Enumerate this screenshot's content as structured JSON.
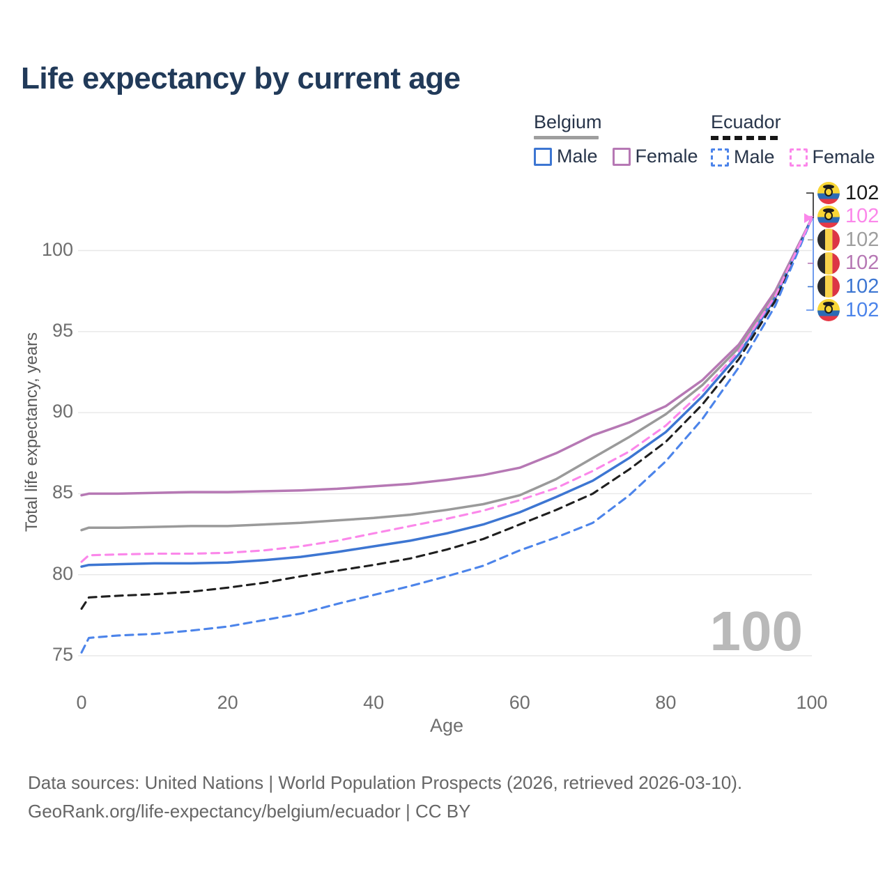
{
  "title": "Life expectancy by current age",
  "legend": {
    "belgium": {
      "label": "Belgium",
      "male_label": "Male",
      "female_label": "Female"
    },
    "ecuador": {
      "label": "Ecuador",
      "male_label": "Male",
      "female_label": "Female"
    }
  },
  "colors": {
    "title": "#213a59",
    "belgium_line": "#9e9e9e",
    "belgium_male": "#3d76d2",
    "belgium_female": "#b678b4",
    "ecuador_line": "#1f1f1f",
    "ecuador_male": "#4c84ea",
    "ecuador_female": "#fb87ea",
    "axis_text": "#6e6e6e",
    "grid": "#e7e7e7",
    "watermark": "#b9b9b9"
  },
  "chart_data": {
    "type": "line",
    "title": "Life expectancy by current age",
    "xlabel": "Age",
    "ylabel": "Total life expectancy, years",
    "x_ticks": [
      0,
      20,
      40,
      60,
      80,
      100
    ],
    "y_ticks": [
      75,
      80,
      85,
      90,
      95,
      100
    ],
    "xlim": [
      0,
      100
    ],
    "ylim": [
      75,
      102.5
    ],
    "grid": true,
    "legend_position": "top-right",
    "x": [
      0,
      1,
      5,
      10,
      15,
      20,
      25,
      30,
      35,
      40,
      45,
      50,
      55,
      60,
      65,
      70,
      75,
      80,
      85,
      90,
      95,
      100
    ],
    "series": [
      {
        "name": "Belgium Female",
        "country": "Belgium",
        "sex": "Female",
        "color": "#b678b4",
        "dashed": false,
        "values": [
          84.9,
          85.0,
          85.0,
          85.05,
          85.1,
          85.1,
          85.15,
          85.2,
          85.3,
          85.45,
          85.6,
          85.85,
          86.15,
          86.6,
          87.5,
          88.6,
          89.4,
          90.4,
          92.0,
          94.2,
          97.5,
          102
        ]
      },
      {
        "name": "Belgium Total",
        "country": "Belgium",
        "sex": "Total",
        "color": "#9a9a9a",
        "dashed": false,
        "values": [
          82.75,
          82.9,
          82.9,
          82.95,
          83.0,
          83.0,
          83.1,
          83.2,
          83.35,
          83.5,
          83.7,
          84.0,
          84.35,
          84.9,
          85.9,
          87.2,
          88.5,
          89.9,
          91.7,
          94.0,
          97.3,
          102
        ]
      },
      {
        "name": "Belgium Male",
        "country": "Belgium",
        "sex": "Male",
        "color": "#3d76d2",
        "dashed": false,
        "values": [
          80.5,
          80.6,
          80.65,
          80.7,
          80.7,
          80.75,
          80.9,
          81.1,
          81.4,
          81.75,
          82.1,
          82.55,
          83.1,
          83.85,
          84.8,
          85.8,
          87.2,
          88.8,
          91.0,
          93.6,
          97.1,
          102
        ]
      },
      {
        "name": "Ecuador Total",
        "country": "Ecuador",
        "sex": "Total",
        "color": "#1f1f1f",
        "dashed": true,
        "values": [
          77.9,
          78.6,
          78.7,
          78.8,
          78.95,
          79.2,
          79.5,
          79.9,
          80.25,
          80.6,
          81.0,
          81.55,
          82.2,
          83.1,
          84.0,
          85.0,
          86.5,
          88.2,
          90.5,
          93.3,
          96.9,
          102
        ]
      },
      {
        "name": "Ecuador Male",
        "country": "Ecuador",
        "sex": "Male",
        "color": "#4c84ea",
        "dashed": true,
        "values": [
          75.2,
          76.1,
          76.25,
          76.35,
          76.55,
          76.8,
          77.2,
          77.6,
          78.2,
          78.75,
          79.3,
          79.9,
          80.55,
          81.5,
          82.3,
          83.2,
          84.9,
          87.0,
          89.6,
          92.8,
          96.6,
          102
        ]
      },
      {
        "name": "Ecuador Female",
        "country": "Ecuador",
        "sex": "Female",
        "color": "#fb87ea",
        "dashed": true,
        "values": [
          80.8,
          81.2,
          81.25,
          81.3,
          81.3,
          81.35,
          81.5,
          81.75,
          82.1,
          82.55,
          83.0,
          83.45,
          83.95,
          84.6,
          85.35,
          86.4,
          87.6,
          89.2,
          91.3,
          93.8,
          97.2,
          102
        ]
      }
    ]
  },
  "right_labels": [
    {
      "flag": "ecuador",
      "color": "#1a1a1a",
      "value": "102"
    },
    {
      "flag": "ecuador",
      "color": "#fb87ea",
      "value": "102"
    },
    {
      "flag": "belgium",
      "color": "#9e9e9e",
      "value": "102"
    },
    {
      "flag": "belgium",
      "color": "#b678b4",
      "value": "102"
    },
    {
      "flag": "belgium",
      "color": "#3d76d2",
      "value": "102"
    },
    {
      "flag": "ecuador",
      "color": "#4c84ea",
      "value": "102"
    }
  ],
  "watermark": "100",
  "footer": {
    "line1": "Data sources: United Nations | World Population Prospects (2026, retrieved 2026-03-10).",
    "line2": "GeoRank.org/life-expectancy/belgium/ecuador | CC BY"
  }
}
